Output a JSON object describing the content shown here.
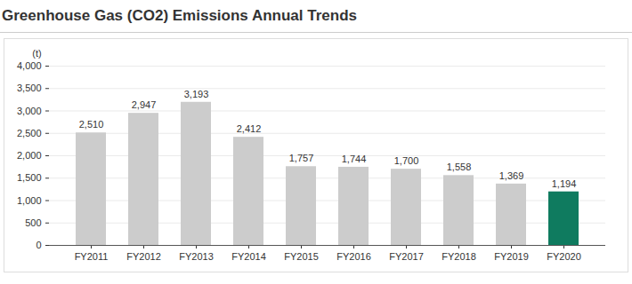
{
  "chart_data": {
    "type": "bar",
    "title": "Greenhouse Gas (CO2) Emissions Annual Trends",
    "y_label": "(t)",
    "categories": [
      "FY2011",
      "FY2012",
      "FY2013",
      "FY2014",
      "FY2015",
      "FY2016",
      "FY2017",
      "FY2018",
      "FY2019",
      "FY2020"
    ],
    "values": [
      2510,
      2947,
      3193,
      2412,
      1757,
      1744,
      1700,
      1558,
      1369,
      1194
    ],
    "value_labels": [
      "2,510",
      "2,947",
      "3,193",
      "2,412",
      "1,757",
      "1,744",
      "1,700",
      "1,558",
      "1,369",
      "1,194"
    ],
    "colors": [
      "#cccccc",
      "#cccccc",
      "#cccccc",
      "#cccccc",
      "#cccccc",
      "#cccccc",
      "#cccccc",
      "#cccccc",
      "#cccccc",
      "#0f7b5f"
    ],
    "ylim": [
      0,
      4000
    ],
    "yticks": [
      0,
      500,
      {
        "value": 1000,
        "label": "1,000"
      },
      {
        "value": 1500,
        "label": "1,500"
      },
      {
        "value": 2000,
        "label": "2,000"
      },
      {
        "value": 2500,
        "label": "2,500"
      },
      {
        "value": 3000,
        "label": "3,000"
      },
      {
        "value": 3500,
        "label": "3,500"
      },
      {
        "value": 4000,
        "label": "4,000"
      }
    ],
    "grid": true,
    "data_labels": true
  }
}
